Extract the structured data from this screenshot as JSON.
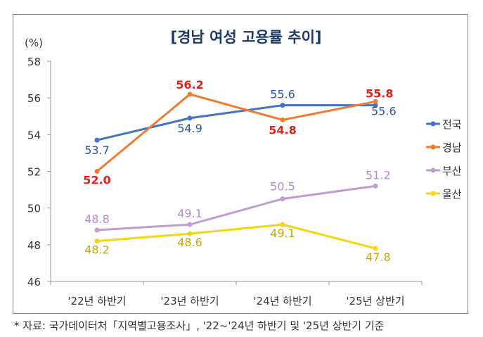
{
  "chart_data": {
    "type": "line",
    "title": "[경남 여성 고용률 추이]",
    "ylabel": "(%)",
    "categories": [
      "'22년 하반기",
      "'23년 하반기",
      "'24년 하반기",
      "'25년 상반기"
    ],
    "ylim": [
      46,
      58
    ],
    "yticks": [
      46,
      48,
      50,
      52,
      54,
      56,
      58
    ],
    "grid": false,
    "legend": "right",
    "series": [
      {
        "name": "전국",
        "values": [
          53.7,
          54.9,
          55.6,
          55.6
        ],
        "color": "#4472C4",
        "label_color": "#2F55A0"
      },
      {
        "name": "경남",
        "values": [
          52.0,
          56.2,
          54.8,
          55.8
        ],
        "color": "#ED7D31",
        "label_color": "#E0201B"
      },
      {
        "name": "부산",
        "values": [
          48.8,
          49.1,
          50.5,
          51.2
        ],
        "color": "#C39BD3",
        "label_color": "#B48AD0"
      },
      {
        "name": "울산",
        "values": [
          48.2,
          48.6,
          49.1,
          47.8
        ],
        "color": "#F2D70A",
        "label_color": "#C9A800"
      }
    ]
  },
  "source": "* 자료: 국가데이터처「지역별고용조사」, '22~'24년 하반기 및 '25년 상반기 기준"
}
